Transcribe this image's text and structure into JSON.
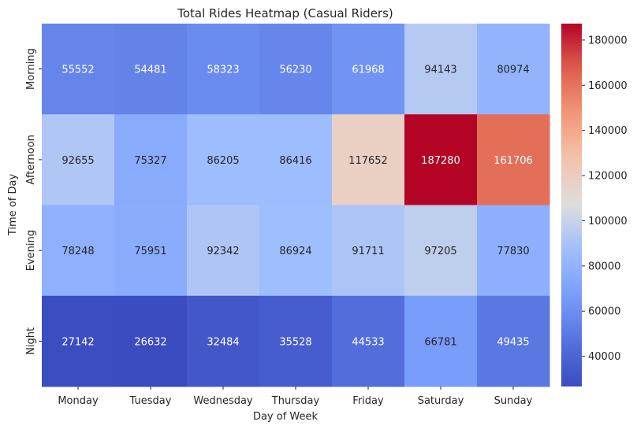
{
  "chart_data": {
    "type": "heatmap",
    "title": "Total Rides Heatmap (Casual Riders)",
    "xlabel": "Day of Week",
    "ylabel": "Time of Day",
    "columns": [
      "Monday",
      "Tuesday",
      "Wednesday",
      "Thursday",
      "Friday",
      "Saturday",
      "Sunday"
    ],
    "rows": [
      "Morning",
      "Afternoon",
      "Evening",
      "Night"
    ],
    "values": [
      [
        55552,
        54481,
        58323,
        56230,
        61968,
        94143,
        80974
      ],
      [
        92655,
        75327,
        86205,
        86416,
        117652,
        187280,
        161706
      ],
      [
        78248,
        75951,
        92342,
        86924,
        91711,
        97205,
        77830
      ],
      [
        27142,
        26632,
        32484,
        35528,
        44533,
        66781,
        49435
      ]
    ],
    "colormap": "coolwarm",
    "vmin": 26632,
    "vmax": 187280,
    "colorbar_ticks": [
      "40000",
      "60000",
      "80000",
      "100000",
      "120000",
      "140000",
      "160000",
      "180000"
    ],
    "label_color_dark": "#262626",
    "label_color_light": "#ffffff"
  }
}
